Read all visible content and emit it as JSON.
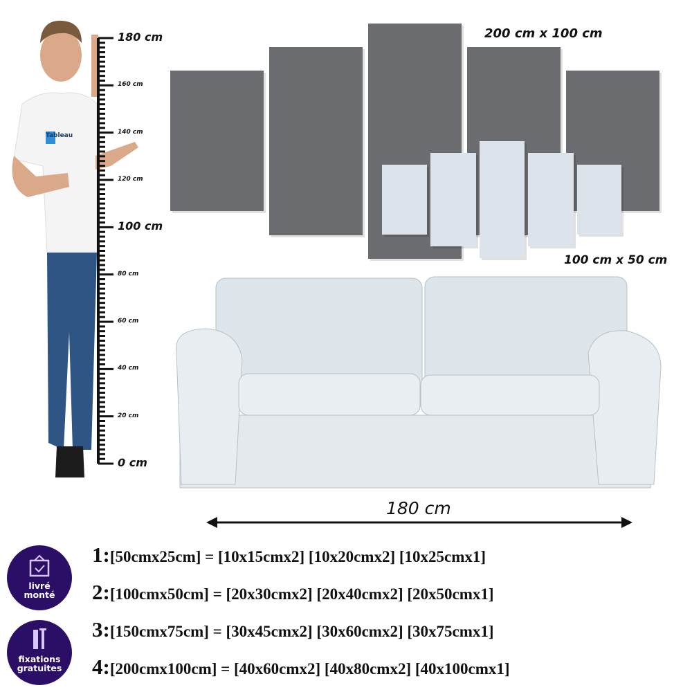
{
  "ruler": {
    "labels": [
      "180 cm",
      "160 cm",
      "140 cm",
      "120 cm",
      "100 cm",
      "80 cm",
      "60 cm",
      "40 cm",
      "20 cm",
      "0 cm"
    ],
    "values": [
      180,
      160,
      140,
      120,
      100,
      80,
      60,
      40,
      20,
      0
    ]
  },
  "person": {
    "shirt_logo": "Tableau"
  },
  "canvas_sizes": {
    "large": "200 cm x 100 cm",
    "small": "100 cm x 50 cm"
  },
  "sofa": {
    "width_label": "180 cm"
  },
  "colors": {
    "large_panels": "#6b6c70",
    "small_panels": "#dde3ea",
    "badge": "#2b0f66"
  },
  "badges": [
    {
      "icon": "hanging-frame-check-icon",
      "line1": "livré",
      "line2": "monté"
    },
    {
      "icon": "screws-plugs-icon",
      "line1": "fixations",
      "line2": "gratuites"
    }
  ],
  "size_options": [
    {
      "num": "1:",
      "text": "[50cmx25cm] = [10x15cmx2] [10x20cmx2] [10x25cmx1]"
    },
    {
      "num": "2:",
      "text": "[100cmx50cm] = [20x30cmx2] [20x40cmx2] [20x50cmx1]"
    },
    {
      "num": "3:",
      "text": "[150cmx75cm] = [30x45cmx2] [30x60cmx2] [30x75cmx1]"
    },
    {
      "num": "4:",
      "text": "[200cmx100cm] = [40x60cmx2] [40x80cmx2] [40x100cmx1]"
    }
  ]
}
